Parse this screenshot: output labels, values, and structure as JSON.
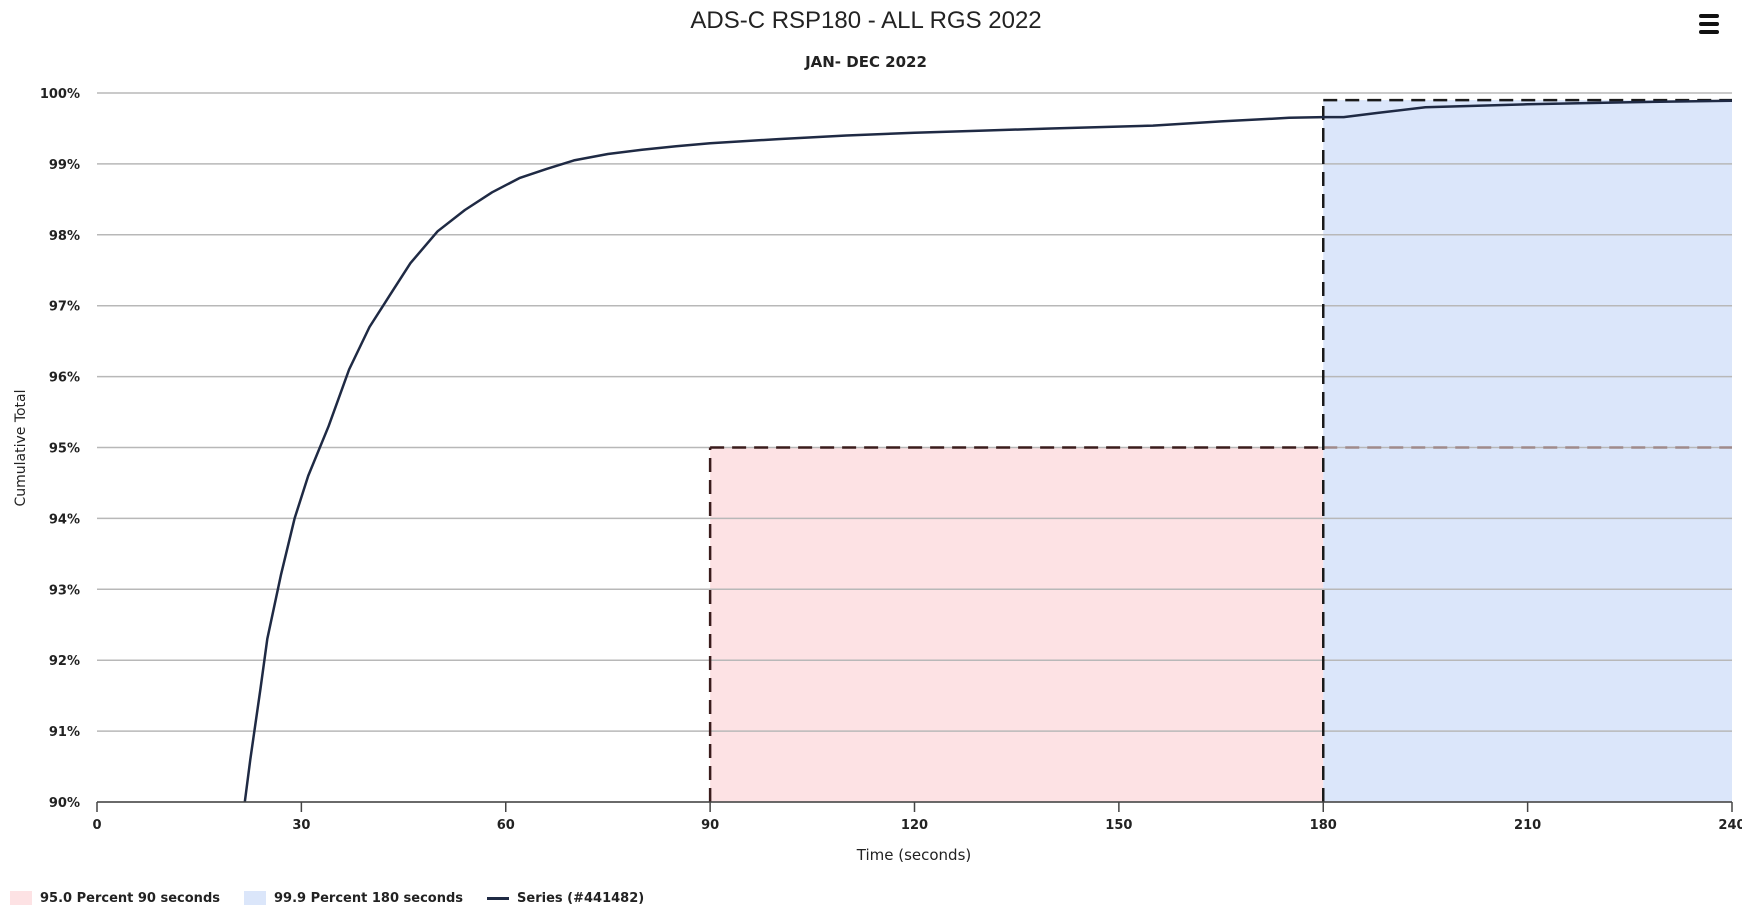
{
  "chart_data": {
    "type": "line",
    "title": "ADS-C RSP180 - ALL RGS 2022",
    "subtitle": "JAN- DEC 2022",
    "xlabel": "Time (seconds)",
    "ylabel": "Cumulative Total",
    "xlim": [
      0,
      240
    ],
    "ylim": [
      90,
      100
    ],
    "x_ticks": [
      0,
      30,
      60,
      90,
      120,
      150,
      180,
      210,
      240
    ],
    "x_tick_labels": [
      "0",
      "30",
      "60",
      "90",
      "120",
      "150",
      "180",
      "210",
      "240"
    ],
    "y_ticks": [
      90,
      91,
      92,
      93,
      94,
      95,
      96,
      97,
      98,
      99,
      100
    ],
    "y_tick_labels": [
      "90%",
      "91%",
      "92%",
      "93%",
      "94%",
      "95%",
      "96%",
      "97%",
      "98%",
      "99%",
      "100%"
    ],
    "grid": true,
    "legend_position": "bottom-left",
    "series": [
      {
        "name": "Series (#441482)",
        "color": "#1f2a44",
        "x": [
          21.7,
          22.5,
          24,
          25,
          27,
          29,
          31,
          34,
          37,
          40,
          43,
          46,
          50,
          54,
          58,
          62,
          66,
          70,
          75,
          80,
          85,
          90,
          100,
          110,
          120,
          130,
          140,
          155,
          165,
          175,
          180,
          183,
          188,
          195,
          210,
          225,
          240
        ],
        "y": [
          90.0,
          90.6,
          91.6,
          92.3,
          93.2,
          94.0,
          94.6,
          95.3,
          96.1,
          96.7,
          97.15,
          97.6,
          98.05,
          98.35,
          98.6,
          98.8,
          98.93,
          99.05,
          99.14,
          99.2,
          99.25,
          99.29,
          99.35,
          99.4,
          99.44,
          99.47,
          99.5,
          99.54,
          99.6,
          99.65,
          99.66,
          99.66,
          99.72,
          99.8,
          99.84,
          99.87,
          99.89
        ]
      }
    ],
    "bands": [
      {
        "name": "95.0 Percent 90 seconds",
        "color": "#fde2e4",
        "x": [
          90,
          180
        ],
        "y": [
          90,
          95
        ]
      },
      {
        "name": "99.9 Percent 180 seconds",
        "color": "#dbe6fa",
        "x": [
          180,
          240
        ],
        "y": [
          90,
          99.9
        ]
      }
    ],
    "reference_lines": [
      {
        "type": "vertical",
        "x": 90,
        "y_max": 95,
        "color": "#3a1c1c"
      },
      {
        "type": "horizontal",
        "y": 95,
        "x_from": 90,
        "x_to": 180,
        "color": "#3a1c1c"
      },
      {
        "type": "horizontal",
        "y": 95,
        "x_from": 180,
        "x_to": 240,
        "color": "#a08a8a"
      },
      {
        "type": "vertical",
        "x": 180,
        "y_max": 99.9,
        "color": "#1a1a1a"
      },
      {
        "type": "horizontal",
        "y": 99.9,
        "x_from": 180,
        "x_to": 240,
        "color": "#1a1a1a"
      }
    ]
  }
}
